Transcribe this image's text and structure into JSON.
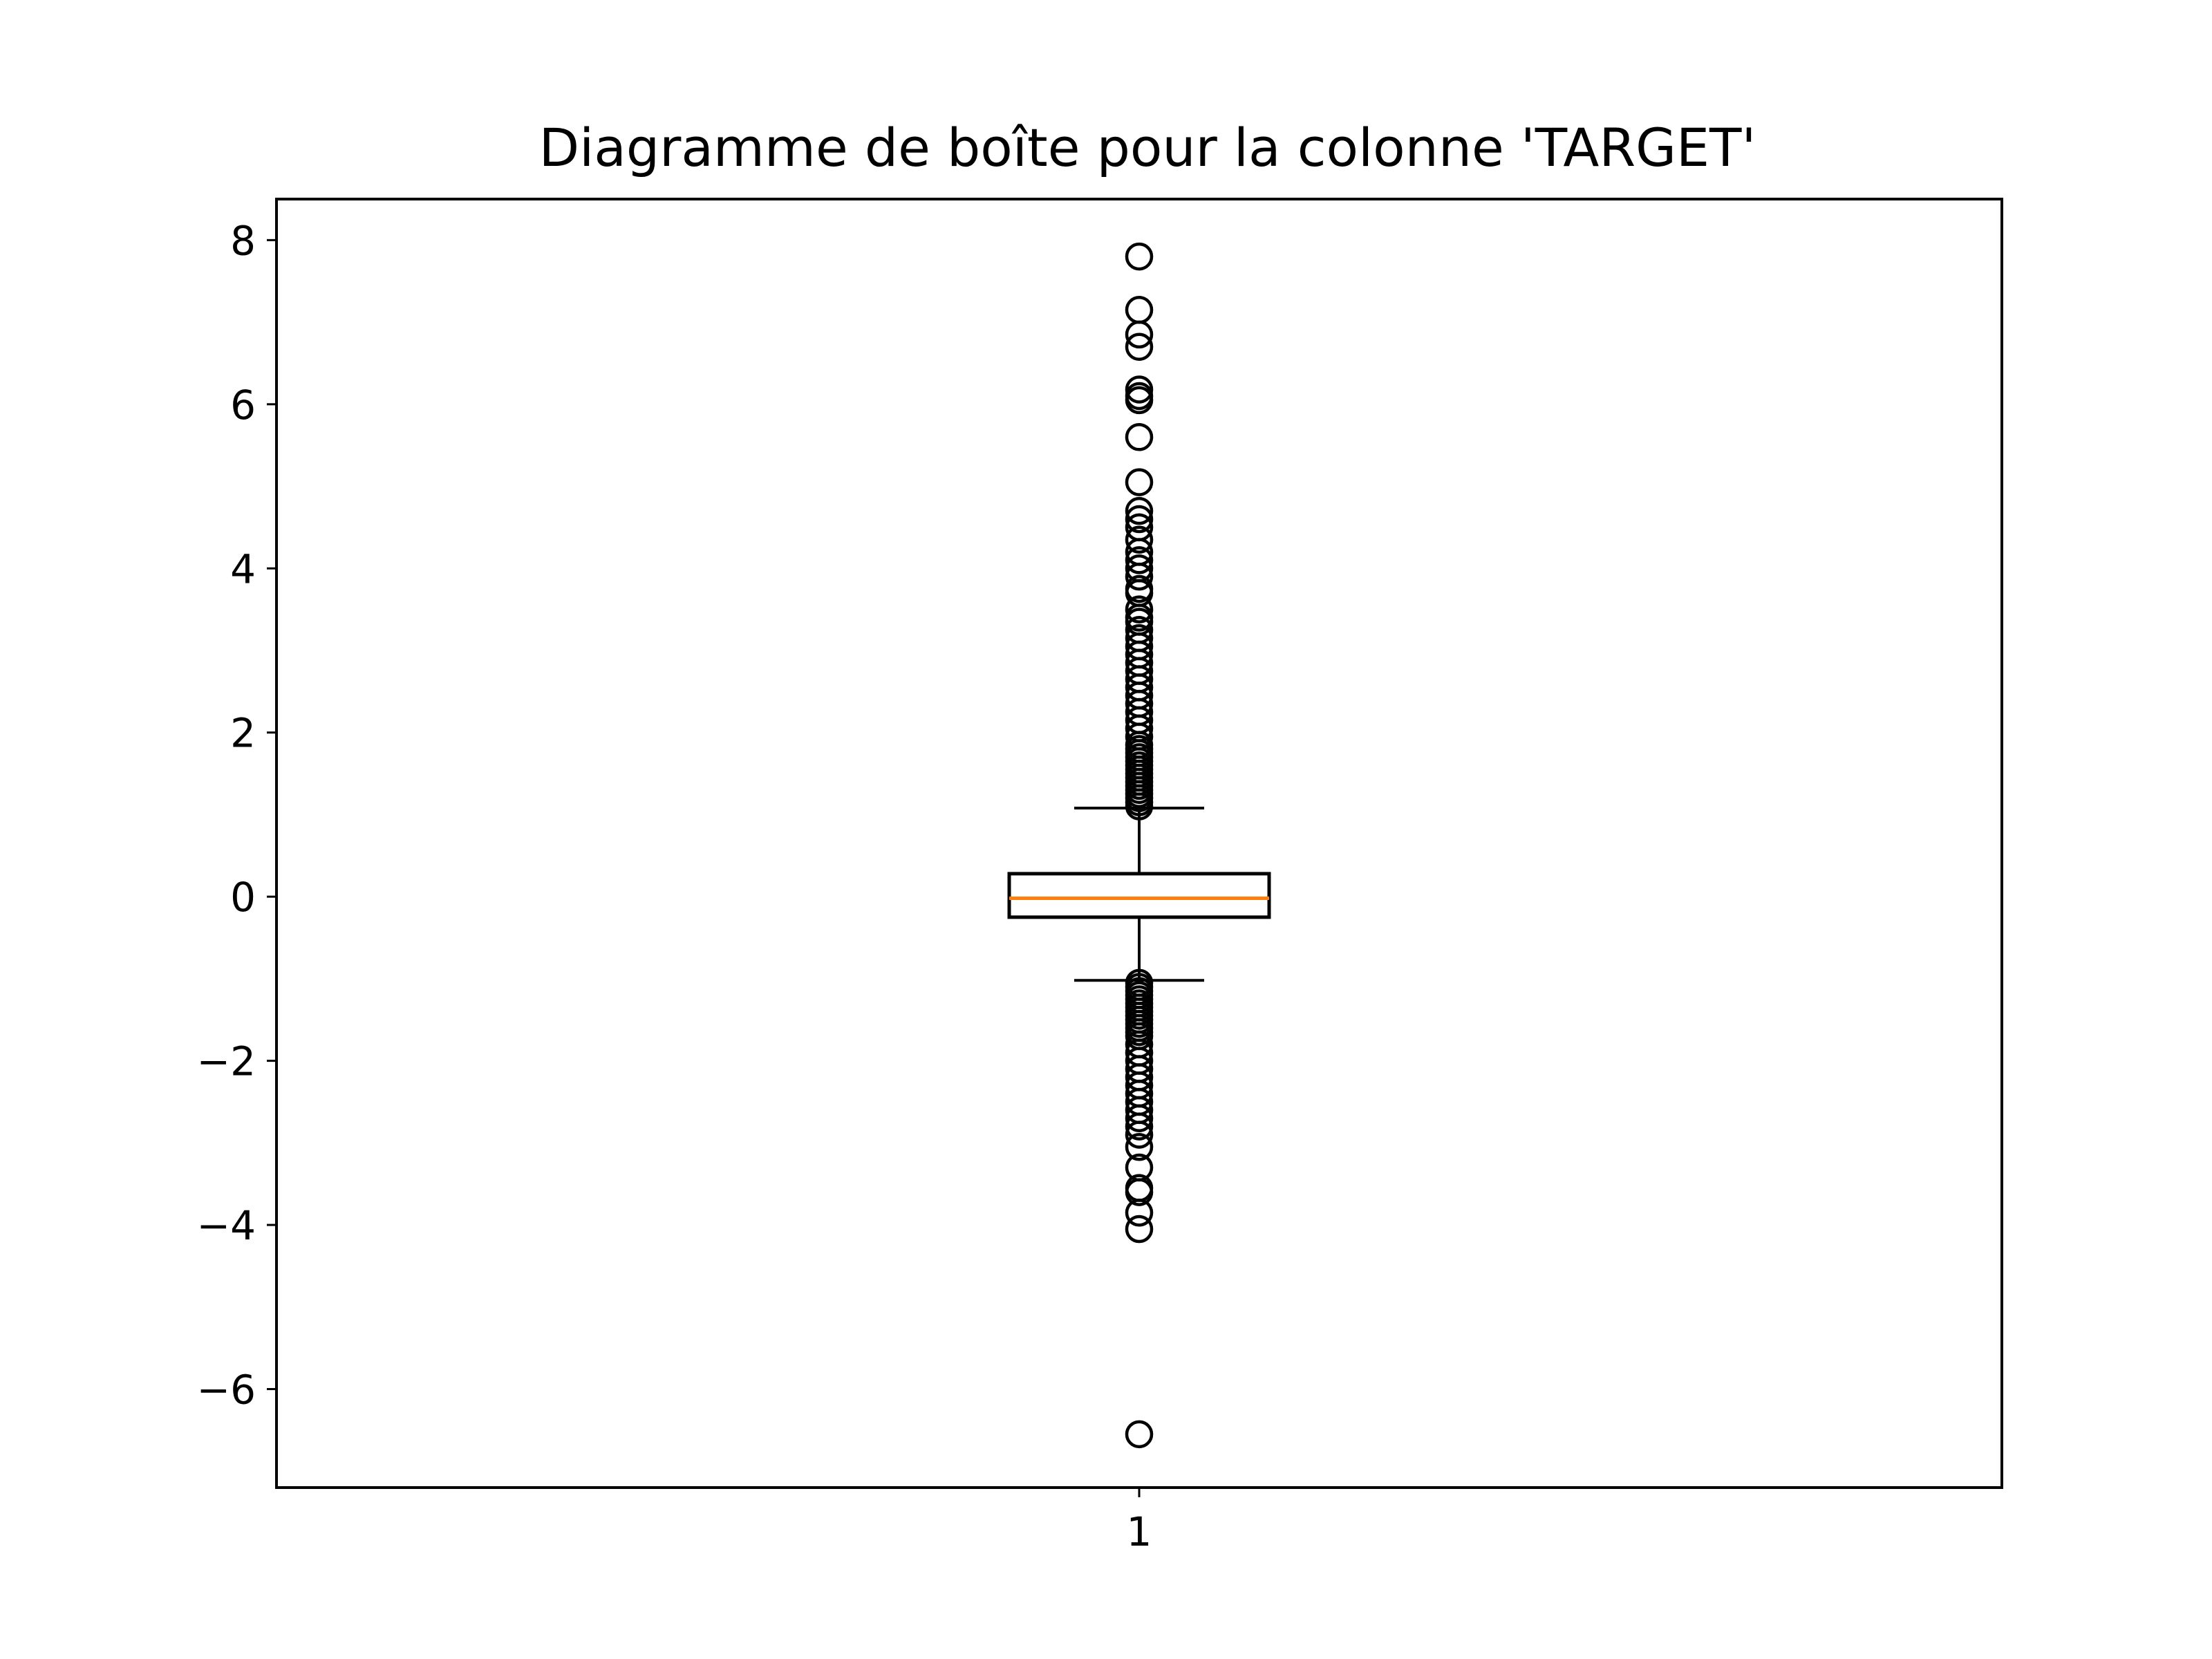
{
  "chart_data": {
    "type": "box",
    "title": "Diagramme de boîte pour la colonne 'TARGET'",
    "xlabel": "",
    "ylabel": "",
    "categories": [
      "1"
    ],
    "ylim": [
      -7.2,
      8.5
    ],
    "yticks": [
      -6,
      -4,
      -2,
      0,
      2,
      4,
      6,
      8
    ],
    "ytick_labels": [
      "−6",
      "−4",
      "−2",
      "0",
      "2",
      "4",
      "6",
      "8"
    ],
    "grid": false,
    "colors": {
      "box": "#000000",
      "median": "#ff7f0e",
      "flier": "#000000"
    },
    "boxes": [
      {
        "category": "1",
        "whisker_low": -1.02,
        "q1": -0.25,
        "median": -0.02,
        "q3": 0.28,
        "whisker_high": 1.08,
        "fliers": [
          7.8,
          7.15,
          6.85,
          6.7,
          6.18,
          6.1,
          6.05,
          5.6,
          5.05,
          4.7,
          4.6,
          4.5,
          4.35,
          4.2,
          4.1,
          4.0,
          3.9,
          3.75,
          3.7,
          3.5,
          3.4,
          3.35,
          3.25,
          3.15,
          3.05,
          2.95,
          2.85,
          2.75,
          2.65,
          2.55,
          2.45,
          2.35,
          2.25,
          2.15,
          2.05,
          1.95,
          1.85,
          1.8,
          1.75,
          1.7,
          1.65,
          1.6,
          1.55,
          1.5,
          1.45,
          1.4,
          1.35,
          1.3,
          1.25,
          1.2,
          1.15,
          1.1,
          -1.05,
          -1.1,
          -1.15,
          -1.2,
          -1.25,
          -1.3,
          -1.35,
          -1.4,
          -1.45,
          -1.5,
          -1.55,
          -1.6,
          -1.65,
          -1.7,
          -1.8,
          -1.9,
          -2.0,
          -2.1,
          -2.2,
          -2.3,
          -2.4,
          -2.5,
          -2.6,
          -2.7,
          -2.8,
          -2.9,
          -3.05,
          -3.3,
          -3.55,
          -3.6,
          -3.85,
          -4.05,
          -6.55
        ]
      }
    ]
  }
}
